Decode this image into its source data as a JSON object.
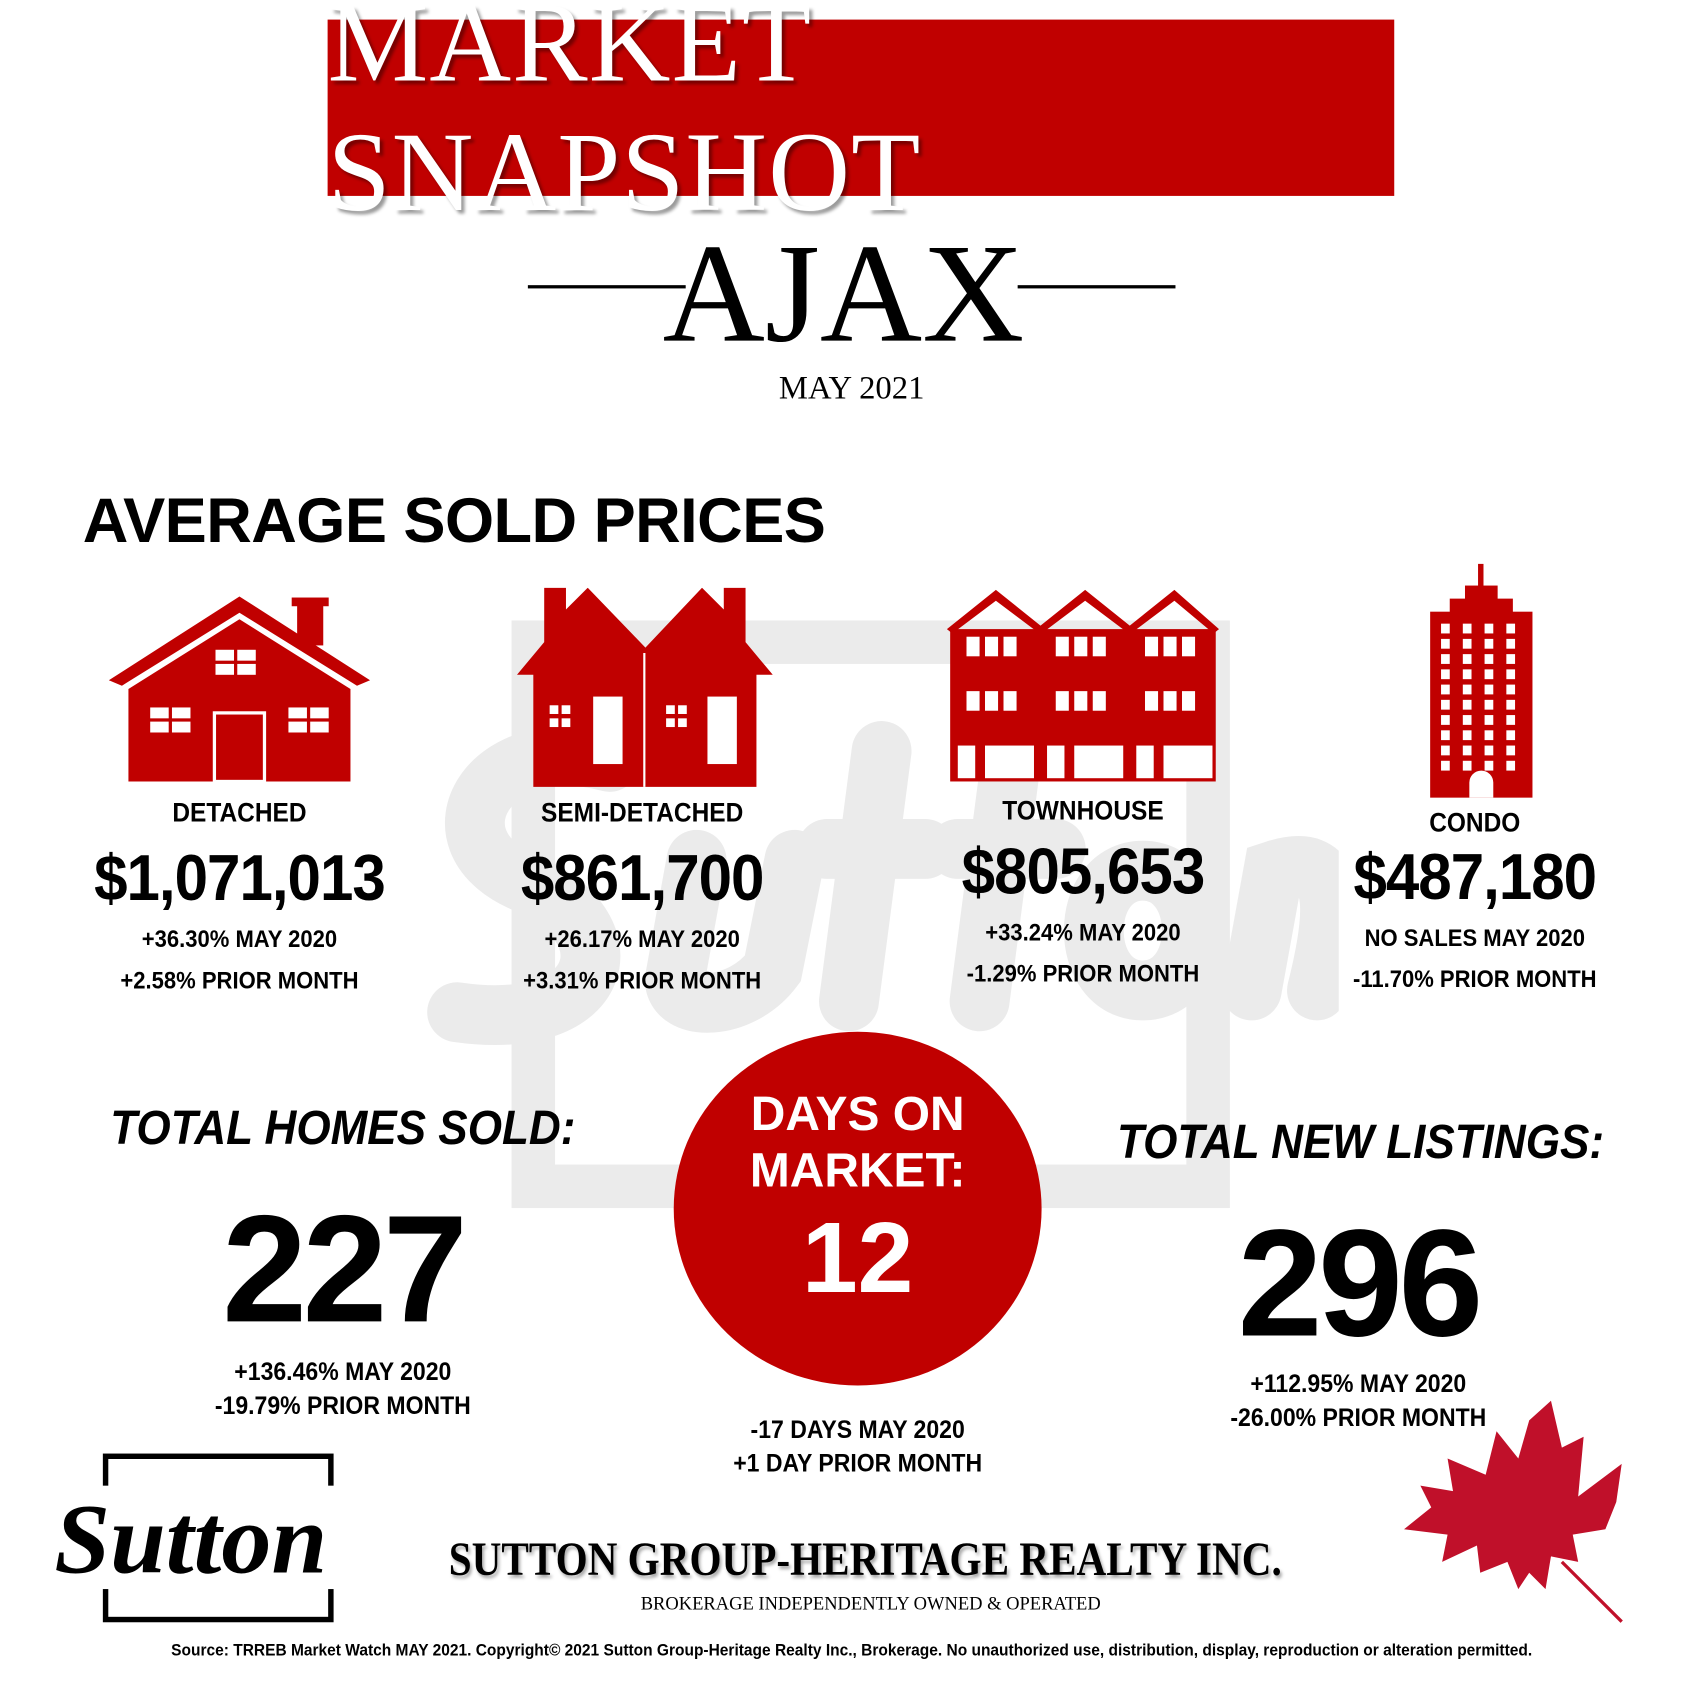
{
  "header": {
    "banner_title": "MARKET SNAPSHOT",
    "city": "AJAX",
    "period": "MAY 2021"
  },
  "colors": {
    "brand_red": "#c00000",
    "text": "#000000"
  },
  "average_sold_prices": {
    "heading": "AVERAGE SOLD PRICES",
    "types": [
      {
        "icon": "detached-house-icon",
        "label": "DETACHED",
        "price": "$1,071,013",
        "yoy": "+36.30% MAY 2020",
        "mom": "+2.58% PRIOR MONTH"
      },
      {
        "icon": "semi-detached-icon",
        "label": "SEMI-DETACHED",
        "price": "$861,700",
        "yoy": "+26.17% MAY 2020",
        "mom": "+3.31% PRIOR MONTH"
      },
      {
        "icon": "townhouse-icon",
        "label": "TOWNHOUSE",
        "price": "$805,653",
        "yoy": "+33.24% MAY 2020",
        "mom": "-1.29% PRIOR MONTH"
      },
      {
        "icon": "condo-tower-icon",
        "label": "CONDO",
        "price": "$487,180",
        "yoy": "NO SALES MAY 2020",
        "mom": "-11.70% PRIOR MONTH"
      }
    ]
  },
  "stats": {
    "homes_sold": {
      "label": "TOTAL HOMES SOLD:",
      "value": "227",
      "yoy": "+136.46% MAY 2020",
      "mom": "-19.79% PRIOR MONTH"
    },
    "days_on_market": {
      "label_line1": "DAYS ON",
      "label_line2": "MARKET:",
      "value": "12",
      "yoy": "-17 DAYS MAY 2020",
      "mom": "+1 DAY PRIOR MONTH"
    },
    "new_listings": {
      "label": "TOTAL NEW LISTINGS:",
      "value": "296",
      "yoy": "+112.95% MAY 2020",
      "mom": "-26.00% PRIOR MONTH"
    }
  },
  "footer": {
    "logo_text": "Sutton",
    "company": "SUTTON GROUP-HERITAGE REALTY INC.",
    "tagline": "BROKERAGE INDEPENDENTLY OWNED & OPERATED",
    "source": "Source: TRREB Market Watch MAY 2021. Copyright© 2021 Sutton Group-Heritage Realty Inc., Brokerage. No unauthorized use, distribution, display, reproduction or alteration permitted."
  }
}
